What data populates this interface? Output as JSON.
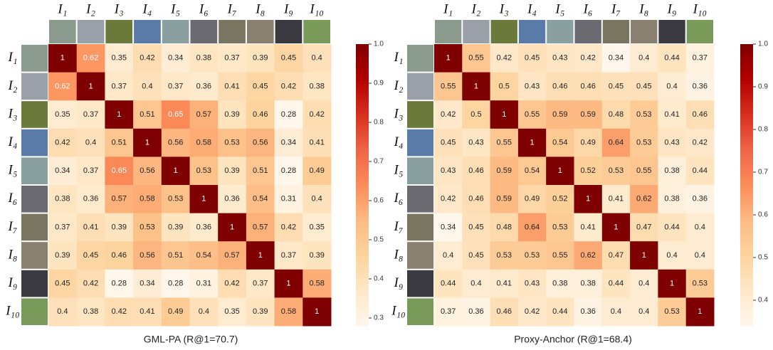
{
  "chart_data": [
    {
      "type": "heatmap",
      "title": "GML-PA (R@1=70.7)",
      "colormap": "OrRd",
      "x_categories": [
        "I₁",
        "I₂",
        "I₃",
        "I₄",
        "I₅",
        "I₆",
        "I₇",
        "I₈",
        "I₉",
        "I₁₀"
      ],
      "y_categories": [
        "I₁",
        "I₂",
        "I₃",
        "I₄",
        "I₅",
        "I₆",
        "I₇",
        "I₈",
        "I₉",
        "I₁₀"
      ],
      "values": [
        [
          1,
          0.62,
          0.35,
          0.42,
          0.34,
          0.38,
          0.37,
          0.39,
          0.45,
          0.4
        ],
        [
          0.62,
          1,
          0.37,
          0.4,
          0.37,
          0.36,
          0.41,
          0.45,
          0.42,
          0.38
        ],
        [
          0.35,
          0.37,
          1,
          0.51,
          0.65,
          0.57,
          0.39,
          0.46,
          0.28,
          0.42
        ],
        [
          0.42,
          0.4,
          0.51,
          1,
          0.56,
          0.58,
          0.53,
          0.56,
          0.34,
          0.41
        ],
        [
          0.34,
          0.37,
          0.65,
          0.56,
          1,
          0.53,
          0.39,
          0.51,
          0.28,
          0.49
        ],
        [
          0.38,
          0.36,
          0.57,
          0.58,
          0.53,
          1,
          0.36,
          0.54,
          0.31,
          0.4
        ],
        [
          0.37,
          0.41,
          0.39,
          0.53,
          0.39,
          0.36,
          1,
          0.57,
          0.42,
          0.35
        ],
        [
          0.39,
          0.45,
          0.46,
          0.56,
          0.51,
          0.54,
          0.57,
          1,
          0.37,
          0.39
        ],
        [
          0.45,
          0.42,
          0.28,
          0.34,
          0.28,
          0.31,
          0.42,
          0.37,
          1,
          0.58
        ],
        [
          0.4,
          0.38,
          0.42,
          0.41,
          0.49,
          0.4,
          0.35,
          0.39,
          0.58,
          1
        ]
      ],
      "zlim": [
        0.28,
        1
      ],
      "zticks": [
        0.3,
        0.4,
        0.5,
        0.6,
        0.7,
        0.8,
        0.9,
        {
          "value": 1,
          "label": "1.0"
        }
      ]
    },
    {
      "type": "heatmap",
      "title": "Proxy-Anchor (R@1=68.4)",
      "colormap": "OrRd",
      "x_categories": [
        "I₁",
        "I₂",
        "I₃",
        "I₄",
        "I₅",
        "I₆",
        "I₇",
        "I₈",
        "I₉",
        "I₁₀"
      ],
      "y_categories": [
        "I₁",
        "I₂",
        "I₃",
        "I₄",
        "I₅",
        "I₆",
        "I₇",
        "I₈",
        "I₉",
        "I₁₀"
      ],
      "values": [
        [
          1,
          0.55,
          0.42,
          0.45,
          0.43,
          0.42,
          0.34,
          0.4,
          0.44,
          0.37
        ],
        [
          0.55,
          1,
          0.5,
          0.43,
          0.46,
          0.46,
          0.45,
          0.45,
          0.4,
          0.36
        ],
        [
          0.42,
          0.5,
          1,
          0.55,
          0.59,
          0.59,
          0.48,
          0.53,
          0.41,
          0.46
        ],
        [
          0.45,
          0.43,
          0.55,
          1,
          0.54,
          0.49,
          0.64,
          0.53,
          0.43,
          0.42
        ],
        [
          0.43,
          0.46,
          0.59,
          0.54,
          1,
          0.52,
          0.53,
          0.55,
          0.38,
          0.44
        ],
        [
          0.42,
          0.46,
          0.59,
          0.49,
          0.52,
          1,
          0.41,
          0.62,
          0.38,
          0.36
        ],
        [
          0.34,
          0.45,
          0.48,
          0.64,
          0.53,
          0.41,
          1,
          0.47,
          0.44,
          0.4
        ],
        [
          0.4,
          0.45,
          0.53,
          0.53,
          0.55,
          0.62,
          0.47,
          1,
          0.4,
          0.4
        ],
        [
          0.44,
          0.4,
          0.41,
          0.43,
          0.38,
          0.38,
          0.44,
          0.4,
          1,
          0.53
        ],
        [
          0.37,
          0.36,
          0.46,
          0.42,
          0.44,
          0.36,
          0.4,
          0.4,
          0.53,
          1
        ]
      ],
      "zlim": [
        0.34,
        1
      ],
      "zticks": [
        0.4,
        0.5,
        0.6,
        0.7,
        0.8,
        0.9,
        {
          "value": 1,
          "label": "1.0"
        }
      ]
    }
  ]
}
